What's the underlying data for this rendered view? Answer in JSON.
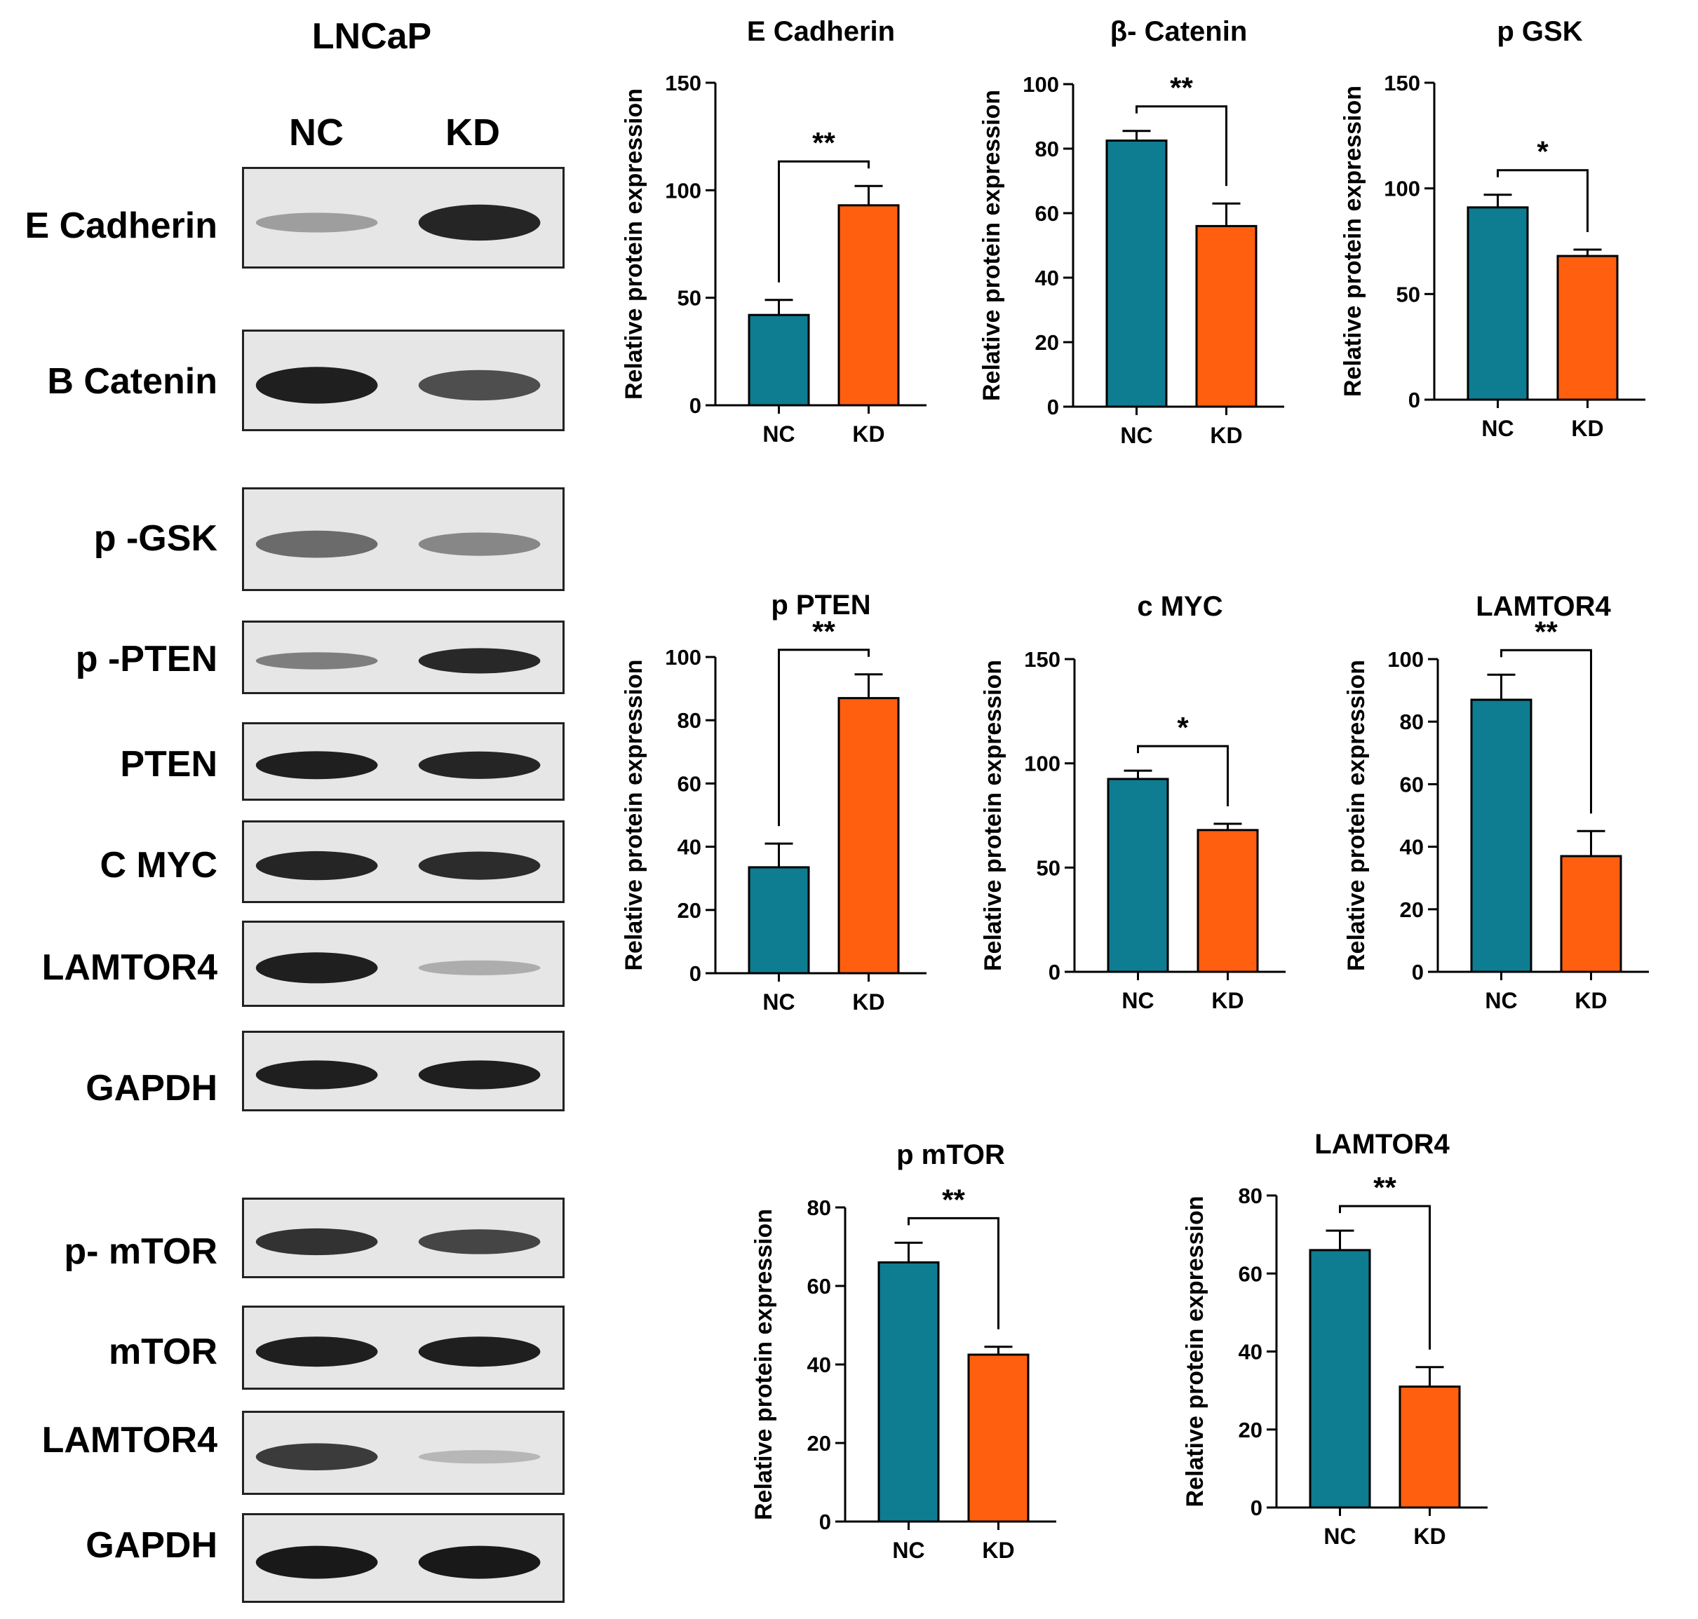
{
  "blot": {
    "cell_line": "LNCaP",
    "lanes": [
      "NC",
      "KD"
    ],
    "rows": [
      {
        "label": "E Cadherin",
        "nc": 0.28,
        "kd": 0.92
      },
      {
        "label": "B Catenin",
        "nc": 0.95,
        "kd": 0.7
      },
      {
        "label": "p -GSK",
        "nc": 0.55,
        "kd": 0.4
      },
      {
        "label": "p -PTEN",
        "nc": 0.45,
        "kd": 0.9
      },
      {
        "label": "PTEN",
        "nc": 0.95,
        "kd": 0.92
      },
      {
        "label": "C MYC",
        "nc": 0.92,
        "kd": 0.88
      },
      {
        "label": "LAMTOR4",
        "nc": 0.95,
        "kd": 0.2
      },
      {
        "label": "GAPDH",
        "nc": 0.95,
        "kd": 0.95
      },
      {
        "label": "p- mTOR",
        "nc": 0.85,
        "kd": 0.75
      },
      {
        "label": "mTOR",
        "nc": 0.95,
        "kd": 0.95
      },
      {
        "label": "LAMTOR4",
        "nc": 0.8,
        "kd": 0.15
      },
      {
        "label": "GAPDH",
        "nc": 0.98,
        "kd": 0.98
      }
    ]
  },
  "colors": {
    "nc": "#0e7c91",
    "kd": "#ff5f0f"
  },
  "chart_data": [
    {
      "type": "bar",
      "title": "E Cadherin",
      "ylabel": "Relative protein expression",
      "categories": [
        "NC",
        "KD"
      ],
      "values": [
        42,
        93
      ],
      "errors": [
        7,
        9
      ],
      "ylim": [
        0,
        150
      ],
      "yticks": [
        0,
        50,
        100,
        150
      ],
      "significance": "**"
    },
    {
      "type": "bar",
      "title": "β- Catenin",
      "ylabel": "Relative protein expression",
      "categories": [
        "NC",
        "KD"
      ],
      "values": [
        82.5,
        56
      ],
      "errors": [
        3,
        7
      ],
      "ylim": [
        0,
        100
      ],
      "yticks": [
        0,
        20,
        40,
        60,
        80,
        100
      ],
      "significance": "**"
    },
    {
      "type": "bar",
      "title": "p GSK",
      "ylabel": "Relative protein expression",
      "categories": [
        "NC",
        "KD"
      ],
      "values": [
        91,
        68
      ],
      "errors": [
        6,
        3
      ],
      "ylim": [
        0,
        150
      ],
      "yticks": [
        0,
        50,
        100,
        150
      ],
      "significance": "*"
    },
    {
      "type": "bar",
      "title": "p PTEN",
      "ylabel": "Relative protein expression",
      "categories": [
        "NC",
        "KD"
      ],
      "values": [
        33.5,
        87
      ],
      "errors": [
        7.5,
        7.5
      ],
      "ylim": [
        0,
        100
      ],
      "yticks": [
        0,
        20,
        40,
        60,
        80,
        100
      ],
      "significance": "**"
    },
    {
      "type": "bar",
      "title": "c MYC",
      "ylabel": "Relative protein expression",
      "categories": [
        "NC",
        "KD"
      ],
      "values": [
        92.5,
        68
      ],
      "errors": [
        4,
        3
      ],
      "ylim": [
        0,
        150
      ],
      "yticks": [
        0,
        50,
        100,
        150
      ],
      "significance": "*"
    },
    {
      "type": "bar",
      "title": "LAMTOR4",
      "ylabel": "Relative protein expression",
      "categories": [
        "NC",
        "KD"
      ],
      "values": [
        87,
        37
      ],
      "errors": [
        8,
        8
      ],
      "ylim": [
        0,
        100
      ],
      "yticks": [
        0,
        20,
        40,
        60,
        80,
        100
      ],
      "significance": "**"
    },
    {
      "type": "bar",
      "title": "p mTOR",
      "ylabel": "Relative protein expression",
      "categories": [
        "NC",
        "KD"
      ],
      "values": [
        66,
        42.5
      ],
      "errors": [
        5,
        2
      ],
      "ylim": [
        0,
        80
      ],
      "yticks": [
        0,
        20,
        40,
        60,
        80
      ],
      "significance": "**"
    },
    {
      "type": "bar",
      "title": "LAMTOR4",
      "ylabel": "Relative protein expression",
      "categories": [
        "NC",
        "KD"
      ],
      "values": [
        66,
        31
      ],
      "errors": [
        5,
        5
      ],
      "ylim": [
        0,
        80
      ],
      "yticks": [
        0,
        20,
        40,
        60,
        80
      ],
      "significance": "**"
    }
  ]
}
